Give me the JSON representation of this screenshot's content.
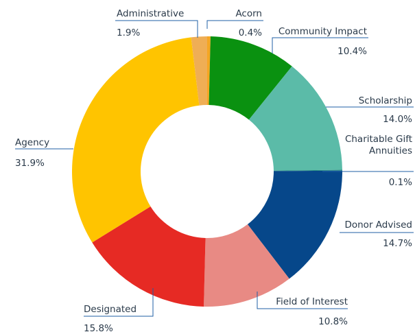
{
  "chart_data": {
    "type": "pie",
    "donut": true,
    "title": "",
    "legend": "none",
    "slices": [
      {
        "label": "Acorn",
        "value": 0.4,
        "value_label": "0.4%",
        "color": "#F5A623"
      },
      {
        "label": "Community Impact",
        "value": 10.4,
        "value_label": "10.4%",
        "color": "#0A9110"
      },
      {
        "label": "Scholarship",
        "value": 14.0,
        "value_label": "14.0%",
        "color": "#5BBBA8"
      },
      {
        "label": "Charitable Gift Annuities",
        "label_lines": [
          "Charitable Gift",
          "Annuities"
        ],
        "value": 0.1,
        "value_label": "0.1%",
        "color": "#2A8E85"
      },
      {
        "label": "Donor Advised",
        "value": 14.7,
        "value_label": "14.7%",
        "color": "#06478A"
      },
      {
        "label": "Field of Interest",
        "value": 10.8,
        "value_label": "10.8%",
        "color": "#E88A84"
      },
      {
        "label": "Designated",
        "value": 15.8,
        "value_label": "15.8%",
        "color": "#E62A24"
      },
      {
        "label": "Agency",
        "value": 31.9,
        "value_label": "31.9%",
        "color": "#FFC400"
      },
      {
        "label": "Administrative",
        "value": 1.9,
        "value_label": "1.9%",
        "color": "#EFAE55"
      }
    ],
    "leader_color": "#1F5FA6"
  }
}
